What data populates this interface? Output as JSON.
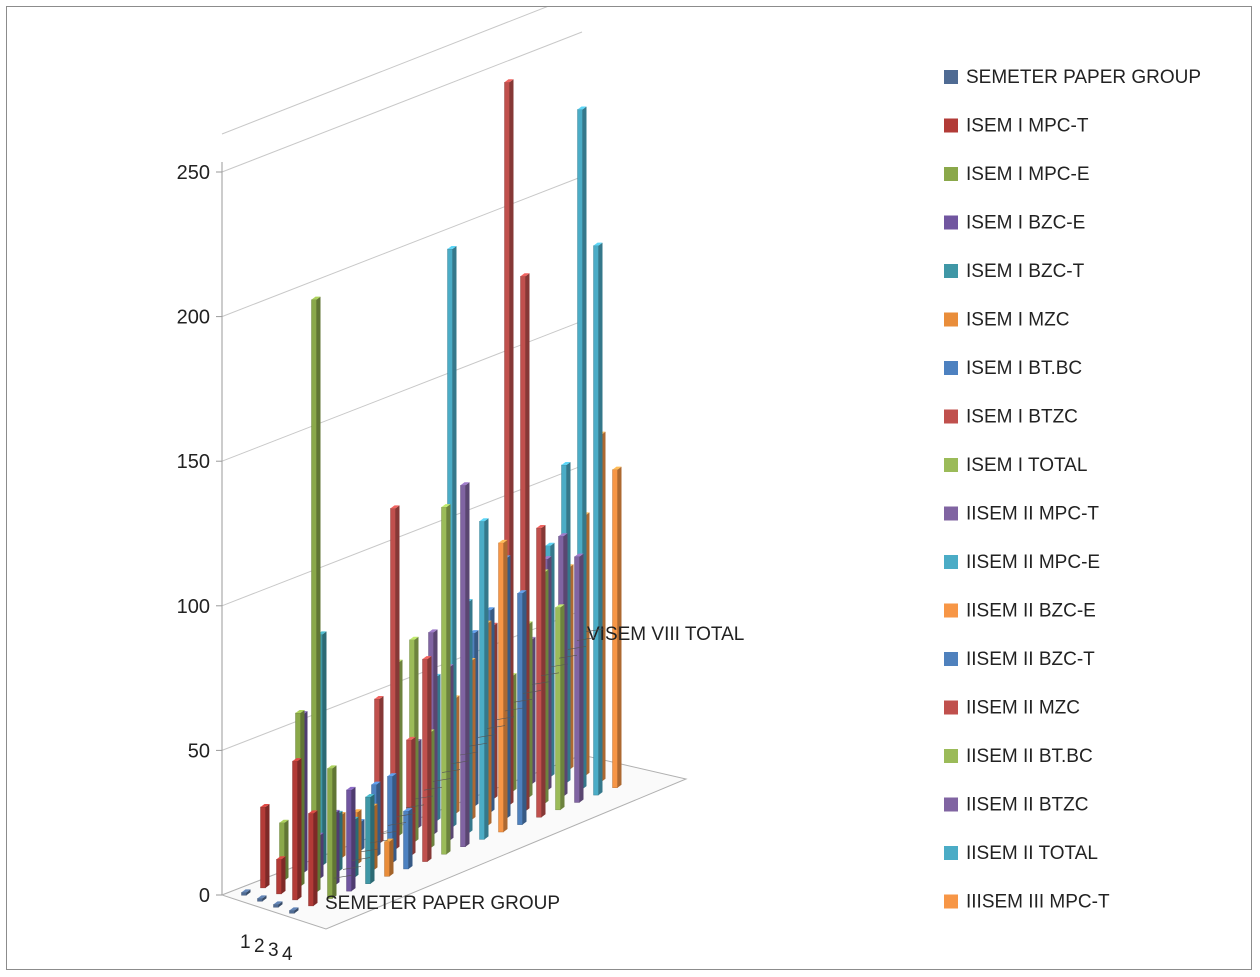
{
  "chart_data": {
    "type": "bar",
    "subtype": "3d-column",
    "title": "",
    "xlabel": "",
    "ylabel": "",
    "ylim": [
      0,
      250
    ],
    "yticks": [
      "0",
      "50",
      "100",
      "150",
      "200",
      "250"
    ],
    "categories": [
      "1",
      "2",
      "3",
      "4"
    ],
    "depth_axis_labels": [
      "SEMETER PAPER GROUP",
      "VISEM VIII TOTAL"
    ],
    "grid": true,
    "legend_position": "right",
    "series": [
      {
        "name": "SEMETER PAPER GROUP",
        "color": "#4f6b93",
        "values": [
          1,
          1,
          1,
          1
        ]
      },
      {
        "name": "ISEM I MPC-T",
        "color": "#b23b37",
        "values": [
          28,
          12,
          48,
          32
        ]
      },
      {
        "name": "ISEM I MPC-E",
        "color": "#8aa84a",
        "values": [
          20,
          60,
          205,
          45
        ]
      },
      {
        "name": "ISEM I BZC-E",
        "color": "#7156a0",
        "values": [
          55,
          15,
          25,
          35
        ]
      },
      {
        "name": "ISEM I BZC-T",
        "color": "#3f97a6",
        "values": [
          80,
          20,
          20,
          30
        ]
      },
      {
        "name": "ISEM I MZC",
        "color": "#e98d3a",
        "values": [
          15,
          18,
          22,
          12
        ]
      },
      {
        "name": "ISEM I BT.BC",
        "color": "#4d81c0",
        "values": [
          10,
          25,
          30,
          20
        ]
      },
      {
        "name": "ISEM I BTZC",
        "color": "#c0504d",
        "values": [
          50,
          118,
          40,
          70
        ]
      },
      {
        "name": "ISEM I TOTAL",
        "color": "#9bbb59",
        "values": [
          60,
          70,
          40,
          120
        ]
      },
      {
        "name": "IISEM II MPC-T",
        "color": "#8064a2",
        "values": [
          30,
          70,
          60,
          125
        ]
      },
      {
        "name": "IISEM II MPC-E",
        "color": "#4bacc6",
        "values": [
          50,
          200,
          80,
          110
        ]
      },
      {
        "name": "IISEM II BZC-E",
        "color": "#f79646",
        "values": [
          40,
          55,
          70,
          100
        ]
      },
      {
        "name": "IISEM II BZC-T",
        "color": "#4f81bd",
        "values": [
          60,
          70,
          90,
          80
        ]
      },
      {
        "name": "IISEM II MZC",
        "color": "#c0504d",
        "values": [
          60,
          250,
          185,
          100
        ]
      },
      {
        "name": "IISEM II BT.BC",
        "color": "#9bbb59",
        "values": [
          40,
          60,
          80,
          70
        ]
      },
      {
        "name": "IISEM II BTZC",
        "color": "#8064a2",
        "values": [
          50,
          80,
          90,
          85
        ]
      },
      {
        "name": "IISEM II TOTAL",
        "color": "#4bacc6",
        "values": [
          80,
          110,
          235,
          190
        ]
      },
      {
        "name": "IIISEM III MPC-T",
        "color": "#f79646",
        "values": [
          70,
          90,
          120,
          110
        ]
      }
    ]
  }
}
